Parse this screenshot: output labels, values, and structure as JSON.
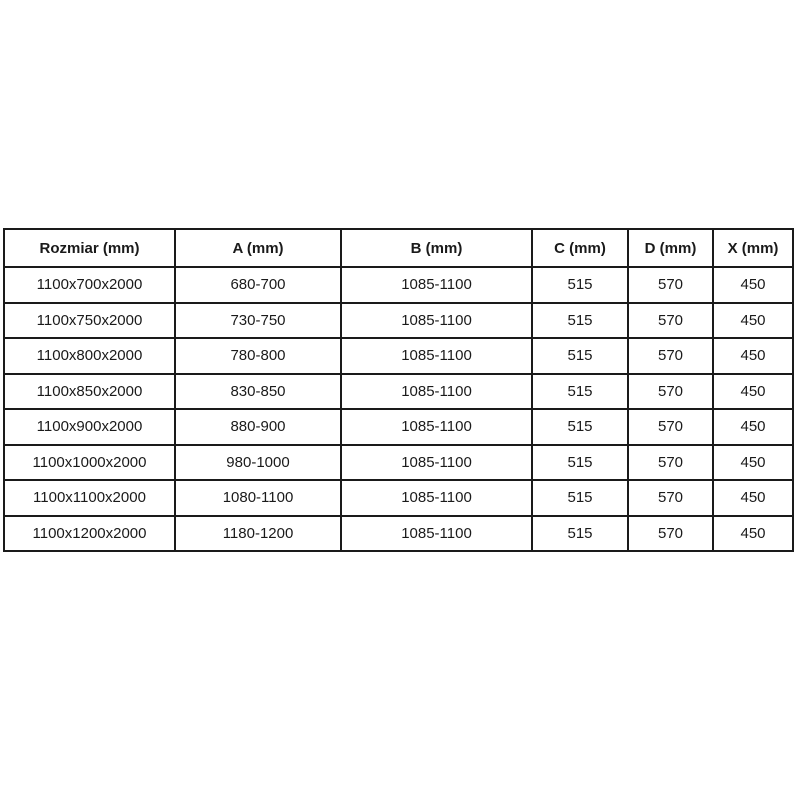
{
  "page": {
    "background_color": "#ffffff",
    "text_color": "#1a1a1a",
    "border_color": "#1a1a1a"
  },
  "table": {
    "columns": [
      "Rozmiar (mm)",
      "A (mm)",
      "B (mm)",
      "C (mm)",
      "D (mm)",
      "X (mm)"
    ],
    "rows": [
      [
        "1100x700x2000",
        "680-700",
        "1085-1100",
        "515",
        "570",
        "450"
      ],
      [
        "1100x750x2000",
        "730-750",
        "1085-1100",
        "515",
        "570",
        "450"
      ],
      [
        "1100x800x2000",
        "780-800",
        "1085-1100",
        "515",
        "570",
        "450"
      ],
      [
        "1100x850x2000",
        "830-850",
        "1085-1100",
        "515",
        "570",
        "450"
      ],
      [
        "1100x900x2000",
        "880-900",
        "1085-1100",
        "515",
        "570",
        "450"
      ],
      [
        "1100x1000x2000",
        "980-1000",
        "1085-1100",
        "515",
        "570",
        "450"
      ],
      [
        "1100x1100x2000",
        "1080-1100",
        "1085-1100",
        "515",
        "570",
        "450"
      ],
      [
        "1100x1200x2000",
        "1180-1200",
        "1085-1100",
        "515",
        "570",
        "450"
      ]
    ]
  },
  "chart_data": {
    "type": "table",
    "title": "",
    "columns": [
      "Rozmiar (mm)",
      "A (mm)",
      "B (mm)",
      "C (mm)",
      "D (mm)",
      "X (mm)"
    ],
    "rows": [
      [
        "1100x700x2000",
        "680-700",
        "1085-1100",
        "515",
        "570",
        "450"
      ],
      [
        "1100x750x2000",
        "730-750",
        "1085-1100",
        "515",
        "570",
        "450"
      ],
      [
        "1100x800x2000",
        "780-800",
        "1085-1100",
        "515",
        "570",
        "450"
      ],
      [
        "1100x850x2000",
        "830-850",
        "1085-1100",
        "515",
        "570",
        "450"
      ],
      [
        "1100x900x2000",
        "880-900",
        "1085-1100",
        "515",
        "570",
        "450"
      ],
      [
        "1100x1000x2000",
        "980-1000",
        "1085-1100",
        "515",
        "570",
        "450"
      ],
      [
        "1100x1100x2000",
        "1080-1100",
        "1085-1100",
        "515",
        "570",
        "450"
      ],
      [
        "1100x1200x2000",
        "1180-1200",
        "1085-1100",
        "515",
        "570",
        "450"
      ]
    ]
  }
}
